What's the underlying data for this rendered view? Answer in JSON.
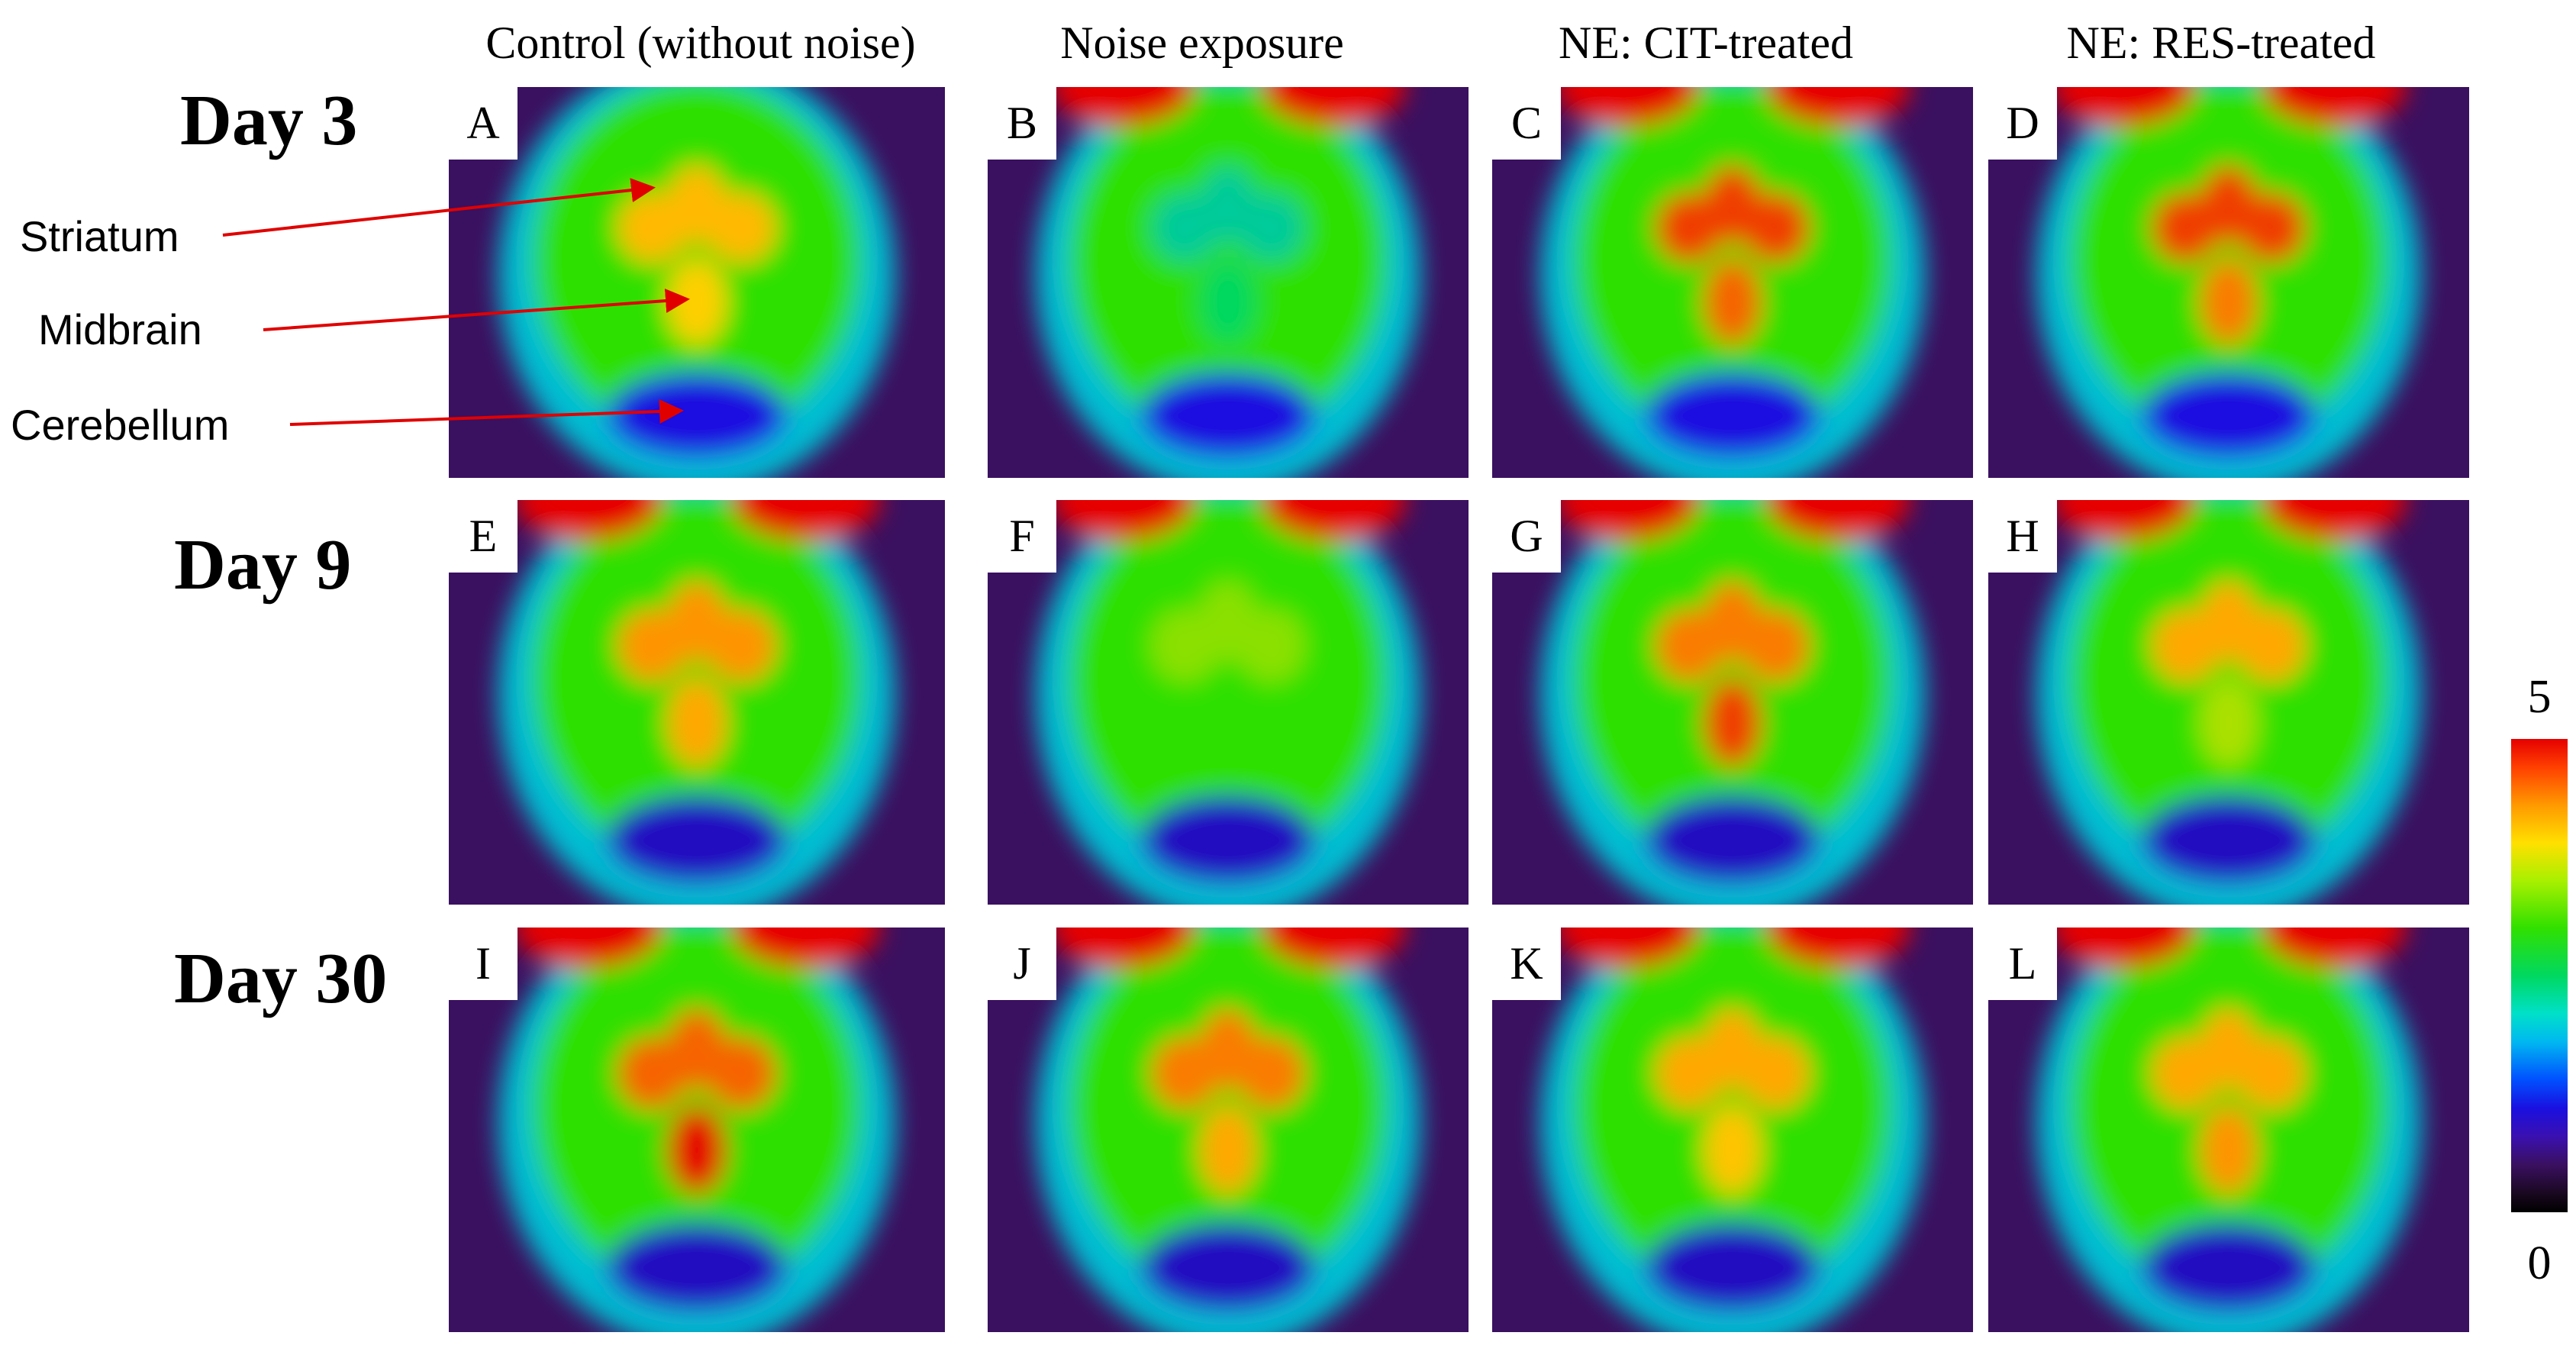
{
  "columns": [
    "Control (without noise)",
    "Noise exposure",
    "NE: CIT-treated",
    "NE: RES-treated"
  ],
  "rows": [
    {
      "label": "Day 3",
      "panels": [
        {
          "letter": "A",
          "striatum": 0.82,
          "midbrain": 0.78,
          "vermis": 0.25,
          "frontal": 0.0
        },
        {
          "letter": "B",
          "striatum": 0.45,
          "midbrain": 0.5,
          "vermis": 0.25,
          "frontal": 1.0
        },
        {
          "letter": "C",
          "striatum": 0.95,
          "midbrain": 0.92,
          "vermis": 0.25,
          "frontal": 1.0
        },
        {
          "letter": "D",
          "striatum": 0.95,
          "midbrain": 0.9,
          "vermis": 0.25,
          "frontal": 1.0
        }
      ]
    },
    {
      "label": "Day 9",
      "panels": [
        {
          "letter": "E",
          "striatum": 0.88,
          "midbrain": 0.85,
          "vermis": 0.22,
          "frontal": 1.0
        },
        {
          "letter": "F",
          "striatum": 0.68,
          "midbrain": 0.62,
          "vermis": 0.22,
          "frontal": 1.0
        },
        {
          "letter": "G",
          "striatum": 0.9,
          "midbrain": 0.95,
          "vermis": 0.22,
          "frontal": 1.0
        },
        {
          "letter": "H",
          "striatum": 0.85,
          "midbrain": 0.7,
          "vermis": 0.22,
          "frontal": 1.0
        }
      ]
    },
    {
      "label": "Day 30",
      "panels": [
        {
          "letter": "I",
          "striatum": 0.92,
          "midbrain": 1.0,
          "vermis": 0.22,
          "frontal": 1.0
        },
        {
          "letter": "J",
          "striatum": 0.9,
          "midbrain": 0.85,
          "vermis": 0.22,
          "frontal": 1.0
        },
        {
          "letter": "K",
          "striatum": 0.85,
          "midbrain": 0.8,
          "vermis": 0.22,
          "frontal": 1.0
        },
        {
          "letter": "L",
          "striatum": 0.85,
          "midbrain": 0.88,
          "vermis": 0.22,
          "frontal": 1.0
        }
      ]
    }
  ],
  "annotations": [
    {
      "label": "Striatum",
      "color": "#e00000"
    },
    {
      "label": "Midbrain",
      "color": "#e00000"
    },
    {
      "label": "Cerebellum",
      "color": "#e00000"
    }
  ],
  "colorbar": {
    "max_label": "5",
    "min_label": "0",
    "colormap": [
      "#000000",
      "#3a1060",
      "#1a10e0",
      "#00b8f0",
      "#00d860",
      "#30e000",
      "#ffe000",
      "#ff9a00",
      "#e60000"
    ]
  }
}
